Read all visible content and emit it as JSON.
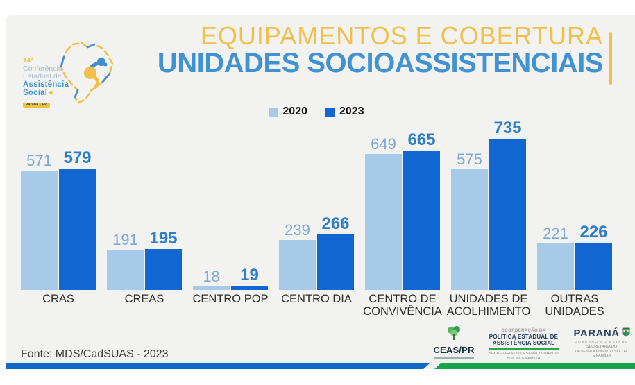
{
  "slide": {
    "logo": {
      "number": "14ª",
      "line1": "Conferência",
      "line2": "Estadual de",
      "line3": "Assistência",
      "line4": "Social",
      "badge": "Paraná | PR"
    },
    "title": {
      "kicker": "EQUIPAMENTOS E COBERTURA",
      "main": "UNIDADES SOCIOASSISTENCIAIS"
    },
    "footer": {
      "source": "Fonte: MDS/CadSUAS - 2023",
      "logos": {
        "ceas_name": "CEAS/PR",
        "coord_top": "COORDENAÇÃO DA",
        "coord_main1": "POLÍTICA ESTADUAL DE",
        "coord_main2": "ASSISTÊNCIA SOCIAL",
        "coord_sub1": "SECRETARIA DO DESENVOLVIMENTO",
        "coord_sub2": "SOCIAL E FAMÍLIA",
        "parana_name": "PARANÁ",
        "parana_gov": "GOVERNO DO ESTADO",
        "parana_sub1": "SECRETARIA DO",
        "parana_sub2": "DESENVOLVIMENTO SOCIAL",
        "parana_sub3": "E FAMÍLIA"
      }
    }
  },
  "chart_data": {
    "type": "bar",
    "title": "UNIDADES SOCIOASSISTENCIAIS",
    "subtitle": "EQUIPAMENTOS E COBERTURA",
    "categories": [
      "CRAS",
      "CREAS",
      "CENTRO POP",
      "CENTRO DIA",
      "CENTRO DE CONVIVÊNCIA",
      "UNIDADES DE ACOLHIMENTO",
      "OUTRAS UNIDADES"
    ],
    "series": [
      {
        "name": "2020",
        "color": "#a8cae9",
        "values": [
          571,
          191,
          18,
          239,
          649,
          575,
          221
        ]
      },
      {
        "name": "2023",
        "color": "#1166d2",
        "values": [
          579,
          195,
          19,
          266,
          665,
          735,
          226
        ]
      }
    ],
    "ylim": [
      0,
      735
    ],
    "grid": false,
    "legend_position": "top",
    "value_labels": true,
    "source": "Fonte: MDS/CadSUAS - 2023"
  },
  "colors": {
    "slide_bg": "#f2f2f0",
    "gold": "#f2c04a",
    "title_blue": "#4192d3",
    "bar_2020": "#a8cae9",
    "bar_2023": "#1166d2",
    "value_2020": "#7fa9d4",
    "value_2023": "#2f7ec8",
    "stripe_blue": "#1168c8",
    "stripe_green": "#17a24b"
  }
}
